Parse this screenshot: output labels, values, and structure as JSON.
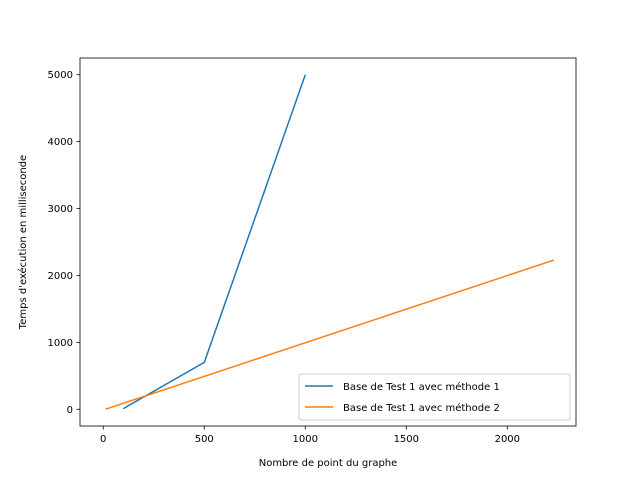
{
  "chart_data": {
    "type": "line",
    "title": "",
    "xlabel": "Nombre de point du graphe",
    "ylabel": "Temps d'exécution en milliseconde",
    "xlim": [
      -115,
      2340
    ],
    "ylim": [
      -250,
      5250
    ],
    "xticks": [
      0,
      500,
      1000,
      1500,
      2000
    ],
    "yticks": [
      0,
      1000,
      2000,
      3000,
      4000,
      5000
    ],
    "grid": false,
    "legend_position": "lower right",
    "series": [
      {
        "name": "Base de Test 1 avec méthode 1",
        "color": "#1f77b4",
        "x": [
          100,
          500,
          1000
        ],
        "y": [
          10,
          700,
          5000
        ]
      },
      {
        "name": "Base de Test 1 avec méthode 2",
        "color": "#ff7f0e",
        "x": [
          10,
          2230
        ],
        "y": [
          0,
          2230
        ]
      }
    ]
  }
}
